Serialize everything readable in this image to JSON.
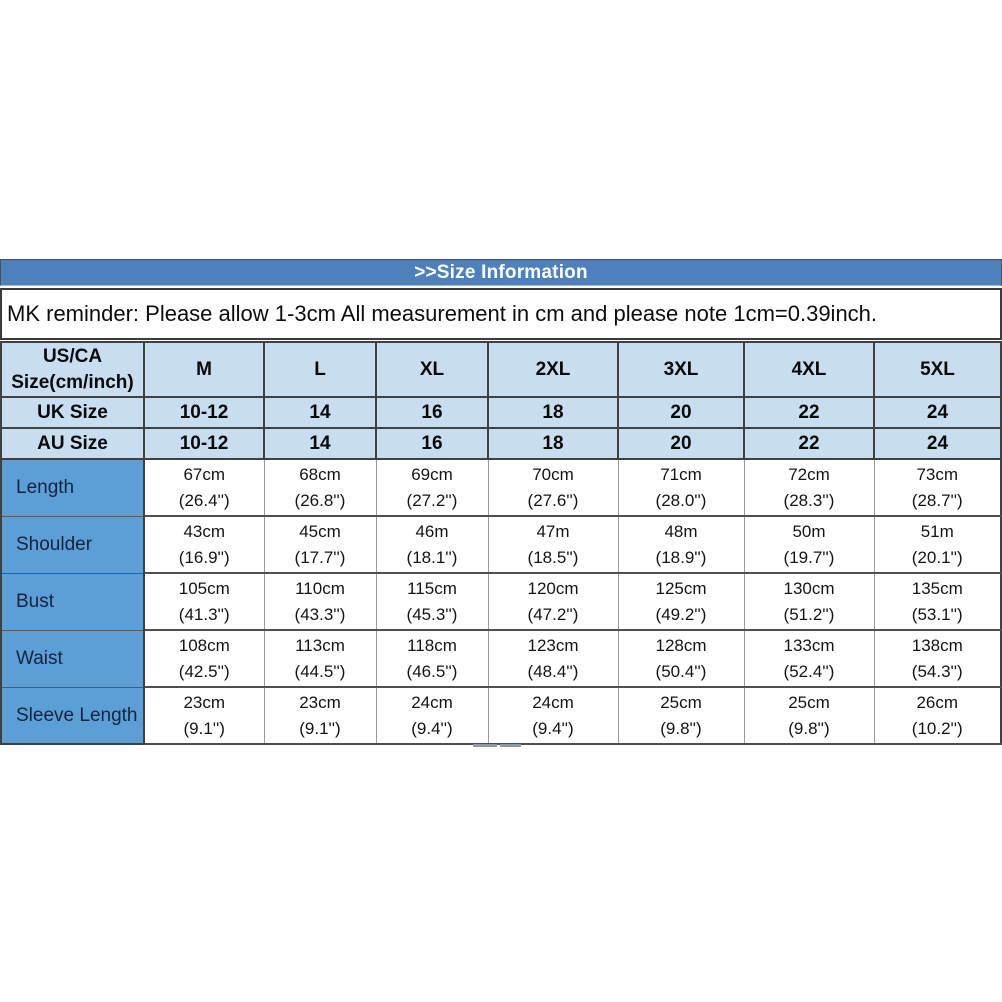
{
  "title_bar": {
    "text": ">>Size Information"
  },
  "reminder": {
    "text": "MK reminder: Please allow 1-3cm All measurement in cm and please note 1cm=0.39inch."
  },
  "size_table": {
    "corner_header": {
      "line1": "US/CA",
      "line2": "Size(cm/inch)"
    },
    "size_columns": [
      "M",
      "L",
      "XL",
      "2XL",
      "3XL",
      "4XL",
      "5XL"
    ],
    "size_rows": [
      {
        "label": "UK Size",
        "values": [
          "10-12",
          "14",
          "16",
          "18",
          "20",
          "22",
          "24"
        ]
      },
      {
        "label": "AU Size",
        "values": [
          "10-12",
          "14",
          "16",
          "18",
          "20",
          "22",
          "24"
        ]
      }
    ],
    "measurement_rows": [
      {
        "label": "Length",
        "values": [
          {
            "cm": "67cm",
            "inch": "(26.4'')"
          },
          {
            "cm": "68cm",
            "inch": "(26.8'')"
          },
          {
            "cm": "69cm",
            "inch": "(27.2'')"
          },
          {
            "cm": "70cm",
            "inch": "(27.6'')"
          },
          {
            "cm": "71cm",
            "inch": "(28.0'')"
          },
          {
            "cm": "72cm",
            "inch": "(28.3'')"
          },
          {
            "cm": "73cm",
            "inch": "(28.7'')"
          }
        ]
      },
      {
        "label": "Shoulder",
        "values": [
          {
            "cm": "43cm",
            "inch": "(16.9'')"
          },
          {
            "cm": "45cm",
            "inch": "(17.7'')"
          },
          {
            "cm": "46m",
            "inch": "(18.1'')"
          },
          {
            "cm": "47m",
            "inch": "(18.5'')"
          },
          {
            "cm": "48m",
            "inch": "(18.9'')"
          },
          {
            "cm": "50m",
            "inch": "(19.7'')"
          },
          {
            "cm": "51m",
            "inch": "(20.1'')"
          }
        ]
      },
      {
        "label": "Bust",
        "values": [
          {
            "cm": "105cm",
            "inch": "(41.3'')"
          },
          {
            "cm": "110cm",
            "inch": "(43.3'')"
          },
          {
            "cm": "115cm",
            "inch": "(45.3'')"
          },
          {
            "cm": "120cm",
            "inch": "(47.2'')"
          },
          {
            "cm": "125cm",
            "inch": "(49.2'')"
          },
          {
            "cm": "130cm",
            "inch": "(51.2'')"
          },
          {
            "cm": "135cm",
            "inch": "(53.1'')"
          }
        ]
      },
      {
        "label": "Waist",
        "values": [
          {
            "cm": "108cm",
            "inch": "(42.5'')"
          },
          {
            "cm": "113cm",
            "inch": "(44.5'')"
          },
          {
            "cm": "118cm",
            "inch": "(46.5'')"
          },
          {
            "cm": "123cm",
            "inch": "(48.4'')"
          },
          {
            "cm": "128cm",
            "inch": "(50.4'')"
          },
          {
            "cm": "133cm",
            "inch": "(52.4'')"
          },
          {
            "cm": "138cm",
            "inch": "(54.3'')"
          }
        ]
      },
      {
        "label": "Sleeve Length",
        "values": [
          {
            "cm": "23cm",
            "inch": "(9.1'')"
          },
          {
            "cm": "23cm",
            "inch": "(9.1'')"
          },
          {
            "cm": "24cm",
            "inch": "(9.4'')"
          },
          {
            "cm": "24cm",
            "inch": "(9.4'')"
          },
          {
            "cm": "25cm",
            "inch": "(9.8'')"
          },
          {
            "cm": "25cm",
            "inch": "(9.8'')"
          },
          {
            "cm": "26cm",
            "inch": "(10.2'')"
          }
        ]
      }
    ]
  },
  "colors": {
    "title_bar_blue": "#4e80bc",
    "header_light_blue": "#c8def0",
    "row_label_blue": "#5b9fd6",
    "grid_dark": "#404040",
    "grid_light": "#9a9a9a"
  }
}
